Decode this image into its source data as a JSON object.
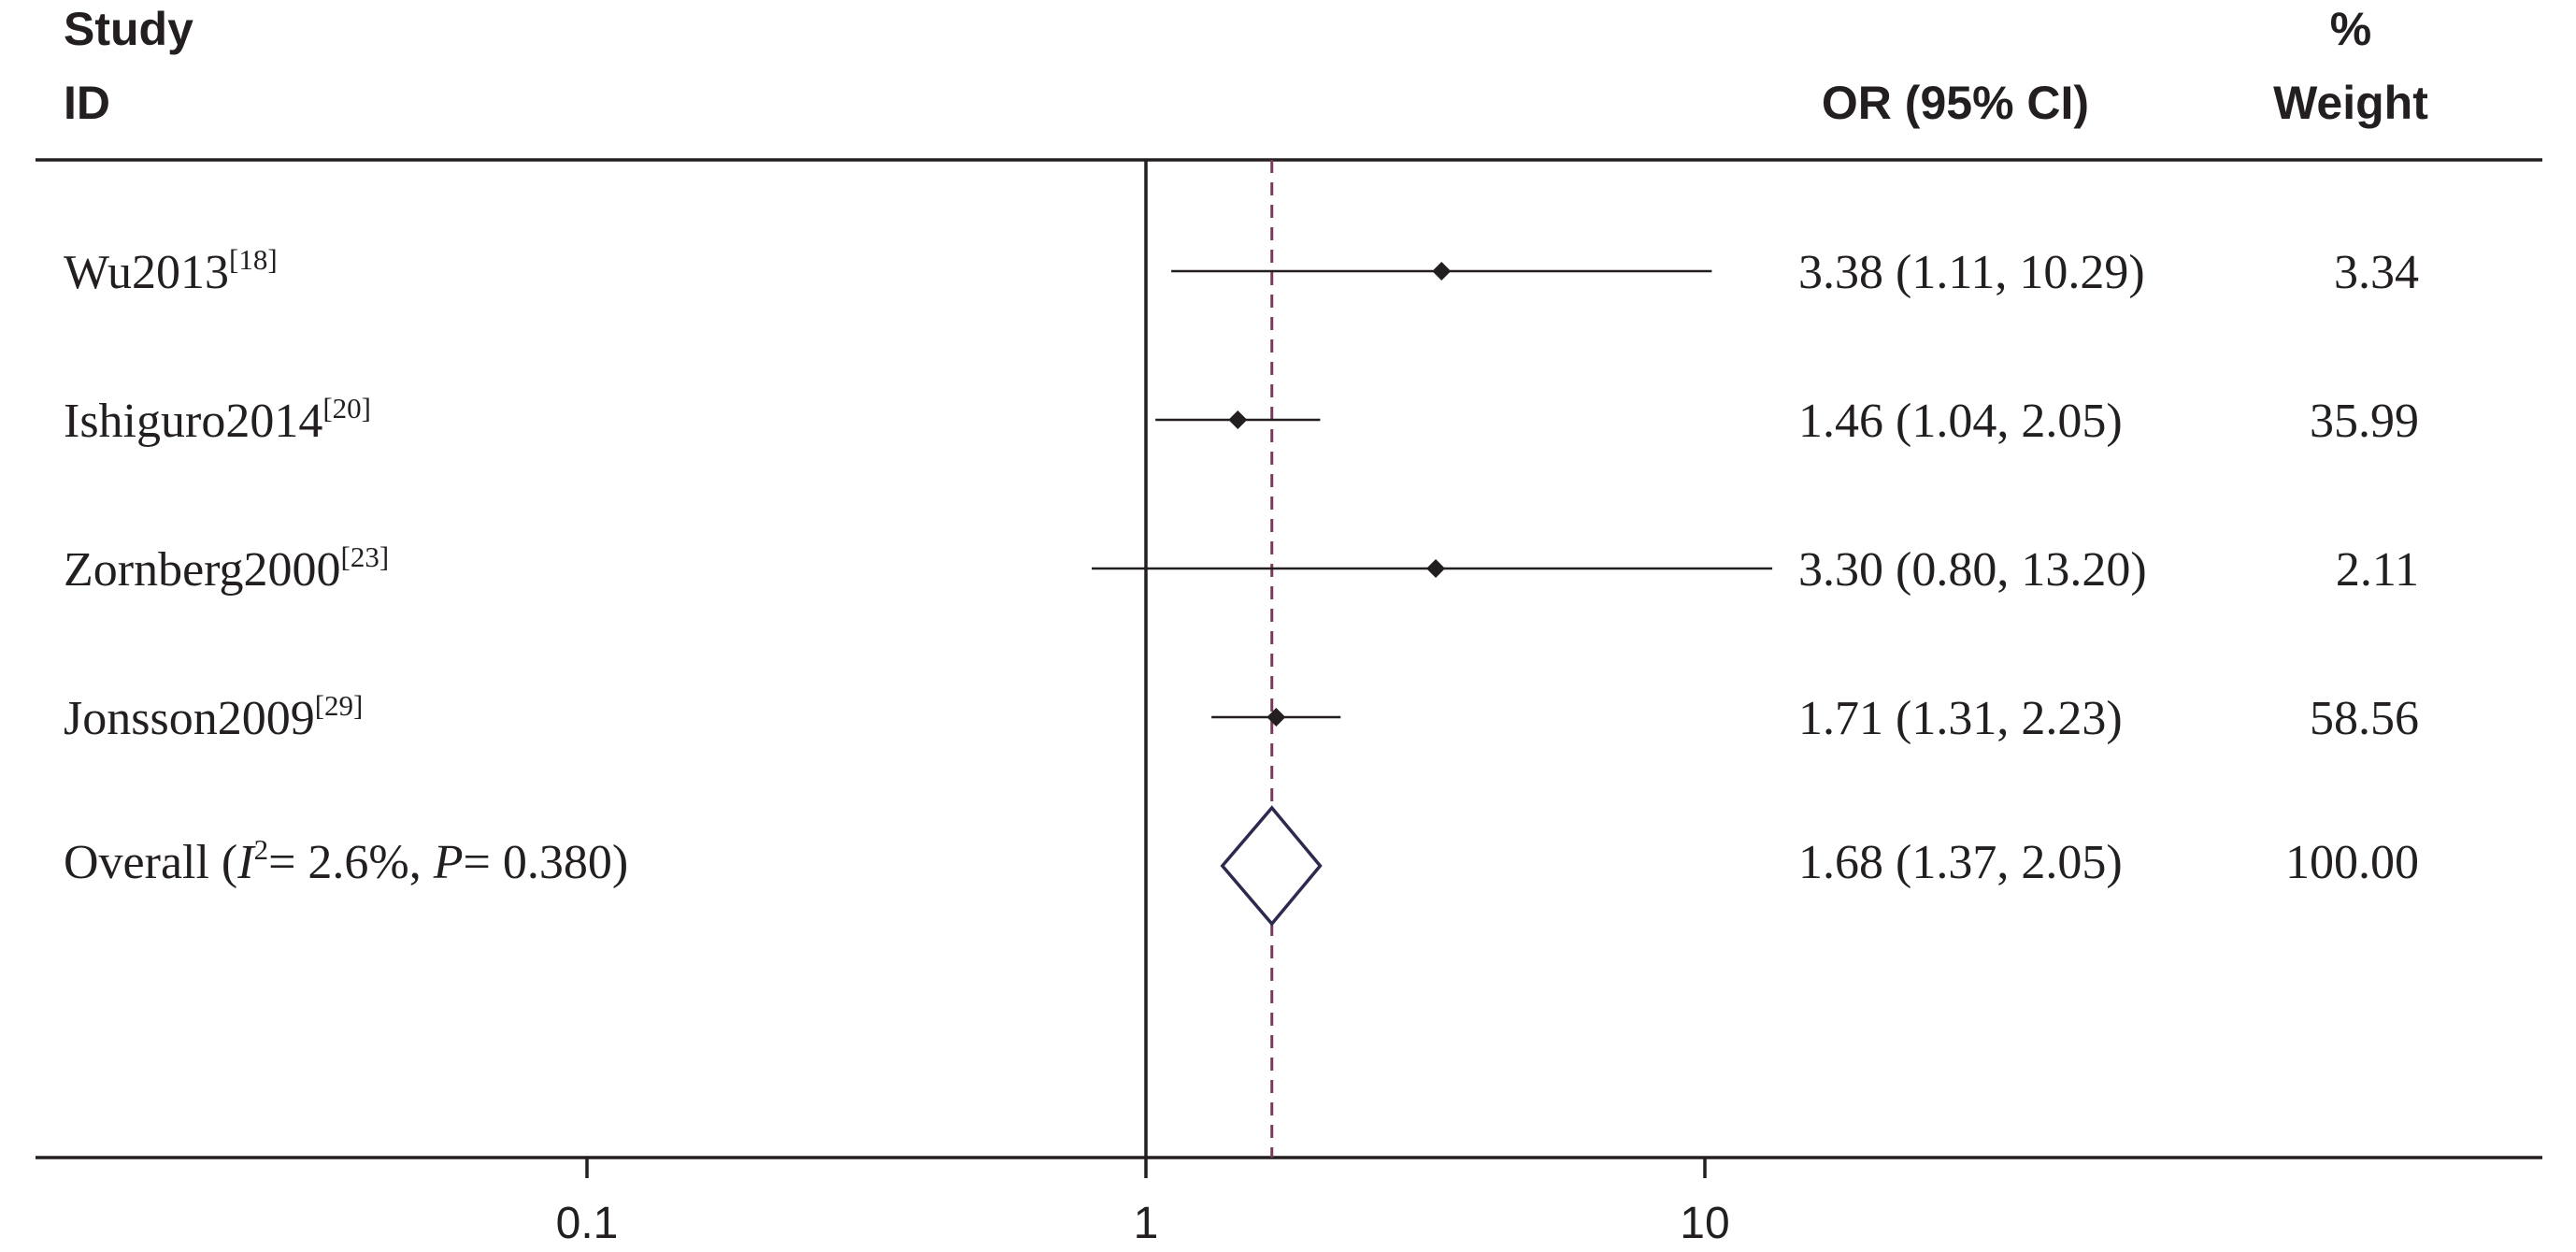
{
  "header": {
    "study_line1": "Study",
    "study_line2": "ID",
    "or_label": "OR (95% CI)",
    "weight_line1": "%",
    "weight_line2": "Weight"
  },
  "chart_data": {
    "type": "forest",
    "x_scale": "log",
    "xlim": [
      0.0393,
      27.5
    ],
    "x_ticks": [
      0.1,
      1,
      10
    ],
    "x_tick_labels": [
      "0.1",
      "1",
      "10"
    ],
    "null_line": 1,
    "studies": [
      {
        "name": "Wu2013",
        "ref": "[18]",
        "or": 3.38,
        "lower": 1.11,
        "upper": 10.29,
        "or_text": "3.38 (1.11, 10.29)",
        "weight": "3.34"
      },
      {
        "name": "Ishiguro2014",
        "ref": "[20]",
        "or": 1.46,
        "lower": 1.04,
        "upper": 2.05,
        "or_text": "1.46 (1.04, 2.05)",
        "weight": "35.99"
      },
      {
        "name": "Zornberg2000",
        "ref": "[23]",
        "or": 3.3,
        "lower": 0.8,
        "upper": 13.2,
        "or_text": "3.30 (0.80, 13.20)",
        "weight": "2.11"
      },
      {
        "name": "Jonsson2009",
        "ref": "[29]",
        "or": 1.71,
        "lower": 1.31,
        "upper": 2.23,
        "or_text": "1.71 (1.31, 2.23)",
        "weight": "58.56"
      }
    ],
    "overall": {
      "label_prefix": "Overall  (",
      "i2_symbol": "I",
      "i2_sup": "2",
      "i2_text": "= 2.6%, ",
      "p_symbol": "P",
      "p_text": "= 0.380)",
      "or": 1.68,
      "lower": 1.37,
      "upper": 2.05,
      "or_text": "1.68 (1.37, 2.05)",
      "weight": "100.00"
    }
  }
}
